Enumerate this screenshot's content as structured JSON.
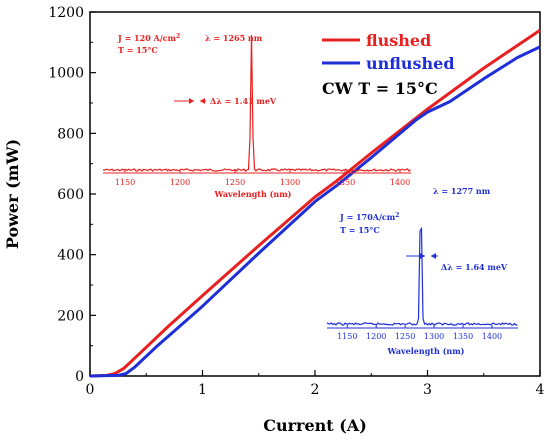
{
  "chart_data": {
    "type": "line",
    "xlabel": "Current (A)",
    "ylabel": "Power (mW)",
    "xlim": [
      0,
      4
    ],
    "ylim": [
      0,
      1200
    ],
    "xticks": [
      "0",
      "1",
      "2",
      "3",
      "4"
    ],
    "yticks": [
      "0",
      "200",
      "400",
      "600",
      "800",
      "1000",
      "1200"
    ],
    "legend_position": "top-right",
    "annotation": "CW T = 15°C",
    "series": [
      {
        "name": "flushed",
        "color": "#e8201f",
        "x": [
          0.0,
          0.15,
          0.22,
          0.3,
          0.5,
          0.7,
          1.0,
          1.5,
          2.0,
          2.2,
          2.5,
          3.0,
          3.5,
          4.0
        ],
        "y": [
          0,
          2,
          8,
          25,
          95,
          165,
          265,
          430,
          590,
          645,
          735,
          880,
          1015,
          1140
        ]
      },
      {
        "name": "unflushed",
        "color": "#1e2fd8",
        "x": [
          0.0,
          0.25,
          0.32,
          0.4,
          0.6,
          1.0,
          1.5,
          2.0,
          2.2,
          2.5,
          2.9,
          3.0,
          3.2,
          3.5,
          3.8,
          4.0
        ],
        "y": [
          0,
          2,
          8,
          30,
          100,
          230,
          405,
          575,
          630,
          720,
          845,
          870,
          905,
          980,
          1050,
          1085
        ]
      }
    ],
    "insets": [
      {
        "color": "#e8201f",
        "xlabel": "Wavelength (nm)",
        "xticks": [
          "1150",
          "1200",
          "1250",
          "1300",
          "1350",
          "1400"
        ],
        "current_density": "J = 120 A/cm",
        "superscript": "2",
        "temperature": "T = 15°C",
        "peak_label": "λ = 1265 nm",
        "linewidth_label": "Δλ = 1.41 meV",
        "peak_wavelength": 1265
      },
      {
        "color": "#1e2fd8",
        "xlabel": "Wavelength (nm)",
        "xticks": [
          "1150",
          "1200",
          "1250",
          "1300",
          "1350",
          "1400"
        ],
        "current_density": "J = 170A/cm",
        "superscript": "2",
        "temperature": "T = 15°C",
        "peak_label": "λ = 1277 nm",
        "linewidth_label": "Δλ = 1.64 meV",
        "peak_wavelength": 1277
      }
    ]
  }
}
